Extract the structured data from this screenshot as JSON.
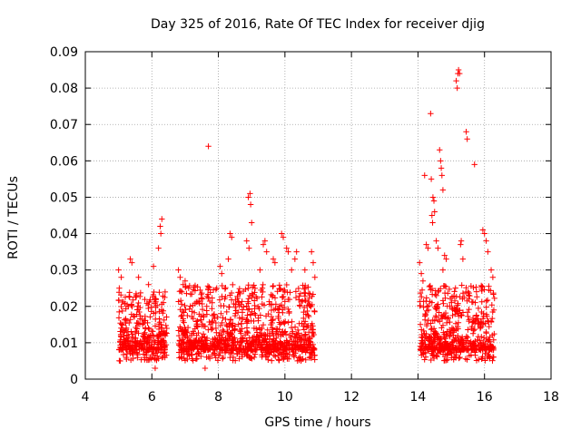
{
  "chart_data": {
    "type": "scatter",
    "title": "Day 325 of 2016, Rate Of TEC Index for receiver djig",
    "xlabel": "GPS time / hours",
    "ylabel": "ROTI / TECUs",
    "xlim": [
      4,
      18
    ],
    "ylim": [
      0,
      0.09
    ],
    "xticks": [
      4,
      6,
      8,
      10,
      12,
      14,
      16,
      18
    ],
    "xtick_labels": [
      "4",
      "6",
      "8",
      "10",
      "12",
      "14",
      "16",
      "18"
    ],
    "yticks": [
      0,
      0.01,
      0.02,
      0.03,
      0.04,
      0.05,
      0.06,
      0.07,
      0.08,
      0.09
    ],
    "ytick_labels": [
      "0",
      "0.01",
      "0.02",
      "0.03",
      "0.04",
      "0.05",
      "0.06",
      "0.07",
      "0.08",
      "0.09"
    ],
    "grid": true,
    "marker": "+",
    "colors": {
      "marker": "#ff0000",
      "grid": "#a0a0a0",
      "axis": "#000000"
    },
    "series": [
      {
        "name": "ROTI",
        "segments": [
          {
            "x_start": 5.0,
            "x_end": 6.45,
            "y_min": 0.004,
            "y_max": 0.024
          },
          {
            "x_start": 6.8,
            "x_end": 10.9,
            "y_min": 0.004,
            "y_max": 0.026
          },
          {
            "x_start": 14.05,
            "x_end": 16.3,
            "y_min": 0.004,
            "y_max": 0.026
          }
        ],
        "points": [
          [
            5.0,
            0.03
          ],
          [
            5.02,
            0.025
          ],
          [
            5.05,
            0.005
          ],
          [
            5.08,
            0.028
          ],
          [
            5.35,
            0.033
          ],
          [
            5.4,
            0.032
          ],
          [
            5.6,
            0.028
          ],
          [
            5.9,
            0.026
          ],
          [
            6.05,
            0.031
          ],
          [
            6.2,
            0.036
          ],
          [
            6.25,
            0.042
          ],
          [
            6.3,
            0.044
          ],
          [
            6.27,
            0.04
          ],
          [
            6.1,
            0.003
          ],
          [
            6.8,
            0.03
          ],
          [
            6.85,
            0.028
          ],
          [
            7.0,
            0.027
          ],
          [
            7.7,
            0.064
          ],
          [
            7.65,
            0.02
          ],
          [
            7.6,
            0.003
          ],
          [
            7.95,
            0.025
          ],
          [
            8.05,
            0.031
          ],
          [
            8.1,
            0.029
          ],
          [
            8.35,
            0.04
          ],
          [
            8.4,
            0.039
          ],
          [
            8.3,
            0.033
          ],
          [
            8.9,
            0.05
          ],
          [
            8.95,
            0.051
          ],
          [
            8.97,
            0.048
          ],
          [
            9.0,
            0.043
          ],
          [
            8.85,
            0.038
          ],
          [
            8.92,
            0.036
          ],
          [
            9.25,
            0.03
          ],
          [
            9.35,
            0.037
          ],
          [
            9.4,
            0.038
          ],
          [
            9.45,
            0.035
          ],
          [
            9.65,
            0.033
          ],
          [
            9.7,
            0.032
          ],
          [
            9.9,
            0.04
          ],
          [
            9.95,
            0.039
          ],
          [
            10.05,
            0.036
          ],
          [
            10.1,
            0.035
          ],
          [
            10.2,
            0.03
          ],
          [
            10.3,
            0.033
          ],
          [
            10.35,
            0.035
          ],
          [
            10.6,
            0.03
          ],
          [
            10.8,
            0.035
          ],
          [
            10.85,
            0.032
          ],
          [
            10.9,
            0.028
          ],
          [
            14.05,
            0.032
          ],
          [
            14.1,
            0.029
          ],
          [
            14.15,
            0.027
          ],
          [
            14.2,
            0.056
          ],
          [
            14.25,
            0.037
          ],
          [
            14.3,
            0.036
          ],
          [
            14.38,
            0.073
          ],
          [
            14.4,
            0.055
          ],
          [
            14.45,
            0.05
          ],
          [
            14.48,
            0.049
          ],
          [
            14.5,
            0.046
          ],
          [
            14.42,
            0.045
          ],
          [
            14.44,
            0.043
          ],
          [
            14.55,
            0.038
          ],
          [
            14.6,
            0.036
          ],
          [
            14.65,
            0.063
          ],
          [
            14.68,
            0.06
          ],
          [
            14.7,
            0.058
          ],
          [
            14.72,
            0.056
          ],
          [
            14.75,
            0.052
          ],
          [
            14.8,
            0.034
          ],
          [
            14.85,
            0.033
          ],
          [
            14.75,
            0.03
          ],
          [
            15.15,
            0.082
          ],
          [
            15.18,
            0.08
          ],
          [
            15.2,
            0.084
          ],
          [
            15.22,
            0.085
          ],
          [
            15.25,
            0.084
          ],
          [
            15.3,
            0.038
          ],
          [
            15.28,
            0.037
          ],
          [
            15.35,
            0.033
          ],
          [
            15.45,
            0.068
          ],
          [
            15.48,
            0.066
          ],
          [
            15.7,
            0.059
          ],
          [
            15.95,
            0.041
          ],
          [
            16.0,
            0.04
          ],
          [
            16.05,
            0.038
          ],
          [
            16.1,
            0.035
          ],
          [
            16.2,
            0.03
          ],
          [
            16.25,
            0.028
          ]
        ]
      }
    ]
  }
}
